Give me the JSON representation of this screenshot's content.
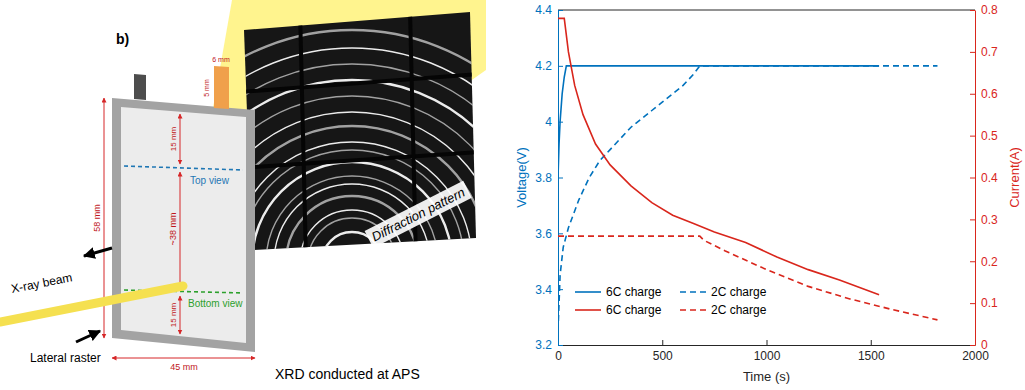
{
  "diagram": {
    "panel_label": "b)",
    "x_ray_beam": "X-ray beam",
    "lateral_raster": "Lateral raster",
    "top_view": "Top view",
    "bottom_view": "Bottom view",
    "dimensions": {
      "height": "58 mm",
      "width": "45 mm",
      "top_margin": "15 mm",
      "view_spacing": "~38 mm",
      "bottom_margin": "15 mm",
      "tab_width": "6 mm",
      "tab_height": "5 mm"
    },
    "diffraction_label": "Diffraction pattern",
    "caption": "XRD conducted at APS"
  },
  "chart_data": {
    "type": "line",
    "x_label": "Time (s)",
    "y_label": "Voltage(V)",
    "y2_label": "Current(A)",
    "xlim": [
      0,
      2000
    ],
    "xticks": [
      0,
      500,
      1000,
      1500,
      2000
    ],
    "ylim": [
      3.2,
      4.4
    ],
    "yticks": [
      3.2,
      3.4,
      3.6,
      3.8,
      4,
      4.2,
      4.4
    ],
    "y2lim": [
      0,
      0.8
    ],
    "y2ticks": [
      0,
      0.1,
      0.2,
      0.3,
      0.4,
      0.5,
      0.6,
      0.7,
      0.8
    ],
    "legend": "lower left",
    "series": [
      {
        "name": "6C charge",
        "color": "#0072bd",
        "line_style": "solid",
        "x": [
          0,
          5,
          10,
          20,
          30,
          40,
          1540
        ],
        "values": [
          3.8,
          3.92,
          4.0,
          4.1,
          4.16,
          4.2,
          4.2
        ]
      },
      {
        "name": "2C charge",
        "color": "#0072bd",
        "line_style": "dashed",
        "x": [
          0,
          10,
          25,
          50,
          100,
          150,
          200,
          250,
          300,
          350,
          400,
          450,
          500,
          550,
          600,
          650,
          680,
          1820
        ],
        "values": [
          3.25,
          3.45,
          3.55,
          3.62,
          3.72,
          3.8,
          3.86,
          3.9,
          3.94,
          3.98,
          4.01,
          4.04,
          4.07,
          4.1,
          4.13,
          4.17,
          4.2,
          4.2
        ]
      },
      {
        "name": "6C charge",
        "color": "#d9261c",
        "line_style": "solid",
        "axis": "y2",
        "x": [
          0,
          30,
          50,
          80,
          120,
          180,
          250,
          350,
          450,
          550,
          650,
          750,
          900,
          1050,
          1200,
          1350,
          1540
        ],
        "values": [
          0.78,
          0.78,
          0.7,
          0.62,
          0.55,
          0.48,
          0.43,
          0.38,
          0.34,
          0.31,
          0.29,
          0.27,
          0.245,
          0.21,
          0.18,
          0.155,
          0.12
        ]
      },
      {
        "name": "2C charge",
        "color": "#d9261c",
        "line_style": "dashed",
        "axis": "y2",
        "x": [
          0,
          680,
          700,
          800,
          1000,
          1200,
          1400,
          1600,
          1820
        ],
        "values": [
          0.26,
          0.26,
          0.25,
          0.225,
          0.18,
          0.14,
          0.11,
          0.085,
          0.06
        ]
      }
    ]
  }
}
